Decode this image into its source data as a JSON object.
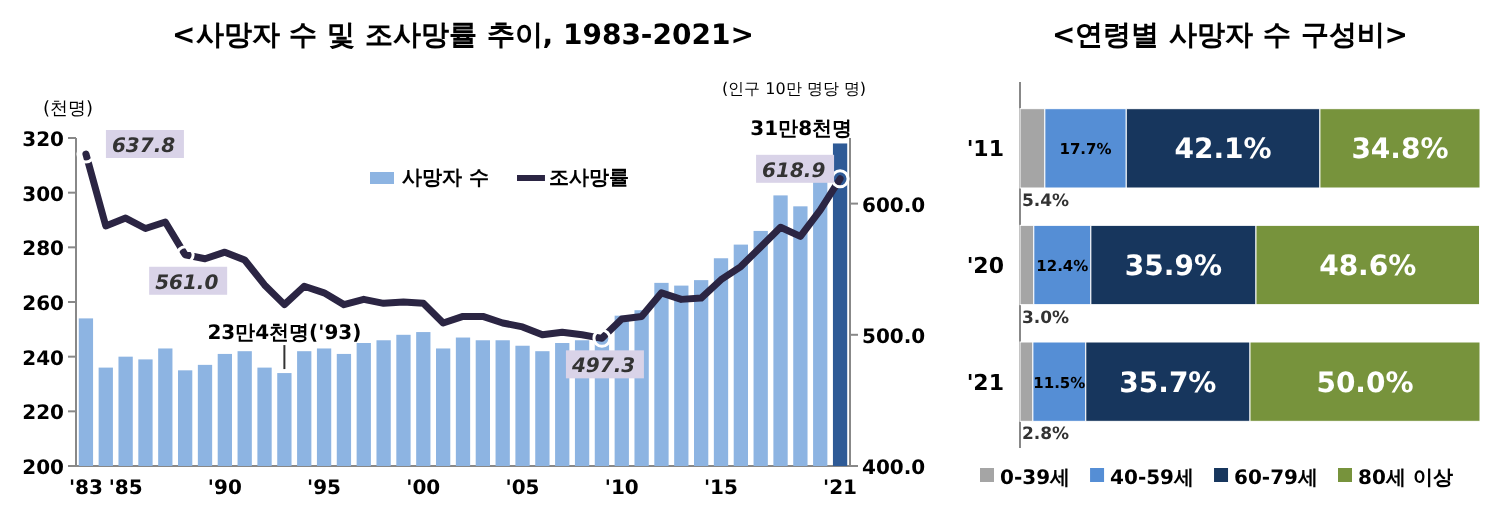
{
  "chart_data": [
    {
      "type": "bar",
      "title": "<사망자 수 및 조사망률 추이, 1983-2021>",
      "ylabel": "(천명)",
      "y2label": "(인구 10만 명당 명)",
      "categories": [
        "'83",
        null,
        "'85",
        null,
        null,
        null,
        null,
        "'90",
        null,
        null,
        null,
        null,
        "'95",
        null,
        null,
        null,
        null,
        "'00",
        null,
        null,
        null,
        null,
        "'05",
        null,
        null,
        null,
        null,
        "'10",
        null,
        null,
        null,
        null,
        "'15",
        null,
        null,
        null,
        null,
        null,
        "'21"
      ],
      "ylim": [
        200,
        320
      ],
      "yticks": [
        200,
        220,
        240,
        260,
        280,
        300,
        320
      ],
      "y2lim": [
        400,
        650
      ],
      "y2ticks": [
        {
          "value": 400,
          "label": "400.0"
        },
        {
          "value": 500,
          "label": "500.0"
        },
        {
          "value": 600,
          "label": "600.0"
        }
      ],
      "legend": "top",
      "series": [
        {
          "name": "사망자 수",
          "type": "bar",
          "color": "#8db4e2",
          "colors": [
            "#8db4e2",
            "#8db4e2",
            "#8db4e2",
            "#8db4e2",
            "#8db4e2",
            "#8db4e2",
            "#8db4e2",
            "#8db4e2",
            "#8db4e2",
            "#8db4e2",
            "#8db4e2",
            "#8db4e2",
            "#8db4e2",
            "#8db4e2",
            "#8db4e2",
            "#8db4e2",
            "#8db4e2",
            "#8db4e2",
            "#8db4e2",
            "#8db4e2",
            "#8db4e2",
            "#8db4e2",
            "#8db4e2",
            "#8db4e2",
            "#8db4e2",
            "#8db4e2",
            "#8db4e2",
            "#8db4e2",
            "#8db4e2",
            "#8db4e2",
            "#8db4e2",
            "#8db4e2",
            "#8db4e2",
            "#8db4e2",
            "#8db4e2",
            "#8db4e2",
            "#8db4e2",
            "#8db4e2",
            "#2e5a96"
          ],
          "values": [
            254,
            236,
            240,
            239,
            243,
            235,
            237,
            241,
            242,
            236,
            234,
            242,
            243,
            241,
            245,
            246,
            248,
            249,
            243,
            247,
            246,
            246,
            244,
            242,
            245,
            246,
            247,
            255,
            257,
            267,
            266,
            268,
            276,
            281,
            286,
            299,
            295,
            305,
            318
          ]
        },
        {
          "name": "조사망률",
          "type": "line",
          "axis": "y2",
          "color": "#2b2543",
          "values": [
            637.8,
            583,
            589,
            581,
            586,
            561.0,
            558,
            563,
            557,
            538,
            523,
            537,
            532,
            523,
            527,
            524,
            525,
            524,
            509,
            514,
            514,
            509,
            506,
            500,
            502,
            500,
            497.3,
            512,
            514,
            532,
            527,
            528,
            542,
            552,
            567,
            582,
            575,
            595,
            618.9
          ],
          "value_labels": [
            "637.8",
            null,
            null,
            null,
            null,
            "561.0",
            null,
            null,
            null,
            null,
            null,
            null,
            null,
            null,
            null,
            null,
            null,
            null,
            null,
            null,
            null,
            null,
            null,
            null,
            null,
            null,
            "497.3",
            null,
            null,
            null,
            null,
            null,
            null,
            null,
            null,
            null,
            null,
            null,
            "618.9"
          ]
        }
      ],
      "annotations": [
        "23만4천명('93)",
        "31만8천명"
      ]
    },
    {
      "type": "bar",
      "orientation": "horizontal",
      "stacked": true,
      "title": "<연령별 사망자 수 구성비>",
      "legend": "bottom",
      "categories": [
        "'11",
        "'20",
        "'21"
      ],
      "series": [
        {
          "name": "0-39세",
          "color": "#a5a5a5",
          "values": [
            5.4,
            3.0,
            2.8
          ],
          "value_labels": [
            "5.4%",
            "3.0%",
            "2.8%"
          ]
        },
        {
          "name": "40-59세",
          "color": "#558ed5",
          "values": [
            17.7,
            12.4,
            11.5
          ],
          "value_labels": [
            "17.7%",
            "12.4%",
            "11.5%"
          ]
        },
        {
          "name": "60-79세",
          "color": "#17365d",
          "values": [
            42.1,
            35.9,
            35.7
          ],
          "value_labels": [
            "42.1%",
            "35.9%",
            "35.7%"
          ]
        },
        {
          "name": "80세 이상",
          "color": "#77933c",
          "values": [
            34.8,
            48.6,
            50.0
          ],
          "value_labels": [
            "34.8%",
            "48.6%",
            "50.0%"
          ]
        }
      ]
    }
  ]
}
